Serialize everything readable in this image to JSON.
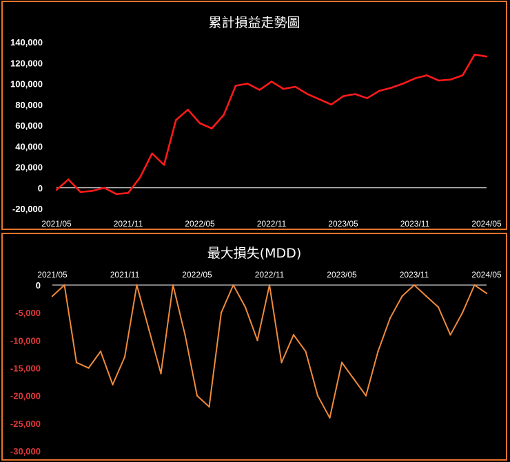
{
  "chart_data": [
    {
      "type": "line",
      "title": "累計損益走勢圖",
      "xlabel": "",
      "ylabel": "",
      "x_ticks": [
        "2021/05",
        "2021/11",
        "2022/05",
        "2022/11",
        "2023/05",
        "2023/11",
        "2024/05"
      ],
      "y_ticks": [
        "140,000",
        "120,000",
        "100,000",
        "80,000",
        "60,000",
        "40,000",
        "20,000",
        "0",
        "-20,000"
      ],
      "ylim": [
        -20000,
        140000
      ],
      "x_range": [
        "2021/05",
        "2024/05"
      ],
      "grid": false,
      "series": [
        {
          "color": "#ff1a1a",
          "x": [
            "2021/05",
            "2021/06",
            "2021/07",
            "2021/08",
            "2021/09",
            "2021/10",
            "2021/11",
            "2021/12",
            "2022/01",
            "2022/02",
            "2022/03",
            "2022/04",
            "2022/05",
            "2022/06",
            "2022/07",
            "2022/08",
            "2022/09",
            "2022/10",
            "2022/11",
            "2022/12",
            "2023/01",
            "2023/02",
            "2023/03",
            "2023/04",
            "2023/05",
            "2023/06",
            "2023/07",
            "2023/08",
            "2023/09",
            "2023/10",
            "2023/11",
            "2023/12",
            "2024/01",
            "2024/02",
            "2024/03",
            "2024/04",
            "2024/05"
          ],
          "values": [
            -2000,
            8000,
            -4000,
            -3000,
            0,
            -6000,
            -5000,
            10000,
            33000,
            22000,
            65000,
            75000,
            62000,
            57000,
            70000,
            98000,
            100000,
            94000,
            102000,
            95000,
            97000,
            90000,
            85000,
            80000,
            88000,
            90000,
            86000,
            93000,
            96000,
            100000,
            105000,
            108000,
            103000,
            104000,
            108000,
            128000,
            126000
          ]
        }
      ]
    },
    {
      "type": "line",
      "title": "最大損失(MDD)",
      "xlabel": "",
      "ylabel": "",
      "x_ticks": [
        "2021/05",
        "2021/11",
        "2022/05",
        "2022/11",
        "2023/05",
        "2023/11",
        "2024/05"
      ],
      "y_ticks": [
        "0",
        "-5,000",
        "-10,000",
        "-15,000",
        "-20,000",
        "-25,000",
        "-30,000"
      ],
      "ylim": [
        -30000,
        0
      ],
      "x_range": [
        "2021/05",
        "2024/05"
      ],
      "grid": false,
      "series": [
        {
          "color": "#f08a3c",
          "x": [
            "2021/05",
            "2021/06",
            "2021/07",
            "2021/08",
            "2021/09",
            "2021/10",
            "2021/11",
            "2021/12",
            "2022/01",
            "2022/02",
            "2022/03",
            "2022/04",
            "2022/05",
            "2022/06",
            "2022/07",
            "2022/08",
            "2022/09",
            "2022/10",
            "2022/11",
            "2022/12",
            "2023/01",
            "2023/02",
            "2023/03",
            "2023/04",
            "2023/05",
            "2023/06",
            "2023/07",
            "2023/08",
            "2023/09",
            "2023/10",
            "2023/11",
            "2023/12",
            "2024/01",
            "2024/02",
            "2024/03",
            "2024/04",
            "2024/05"
          ],
          "values": [
            -2000,
            0,
            -14000,
            -15000,
            -12000,
            -18000,
            -13000,
            0,
            -8000,
            -16000,
            0,
            -9000,
            -20000,
            -22000,
            -5000,
            0,
            -4000,
            -10000,
            0,
            -14000,
            -9000,
            -12000,
            -20000,
            -24000,
            -14000,
            -17000,
            -20000,
            -12000,
            -6000,
            -2000,
            0,
            -2000,
            -4000,
            -9000,
            -5000,
            0,
            -1500
          ]
        }
      ]
    }
  ]
}
